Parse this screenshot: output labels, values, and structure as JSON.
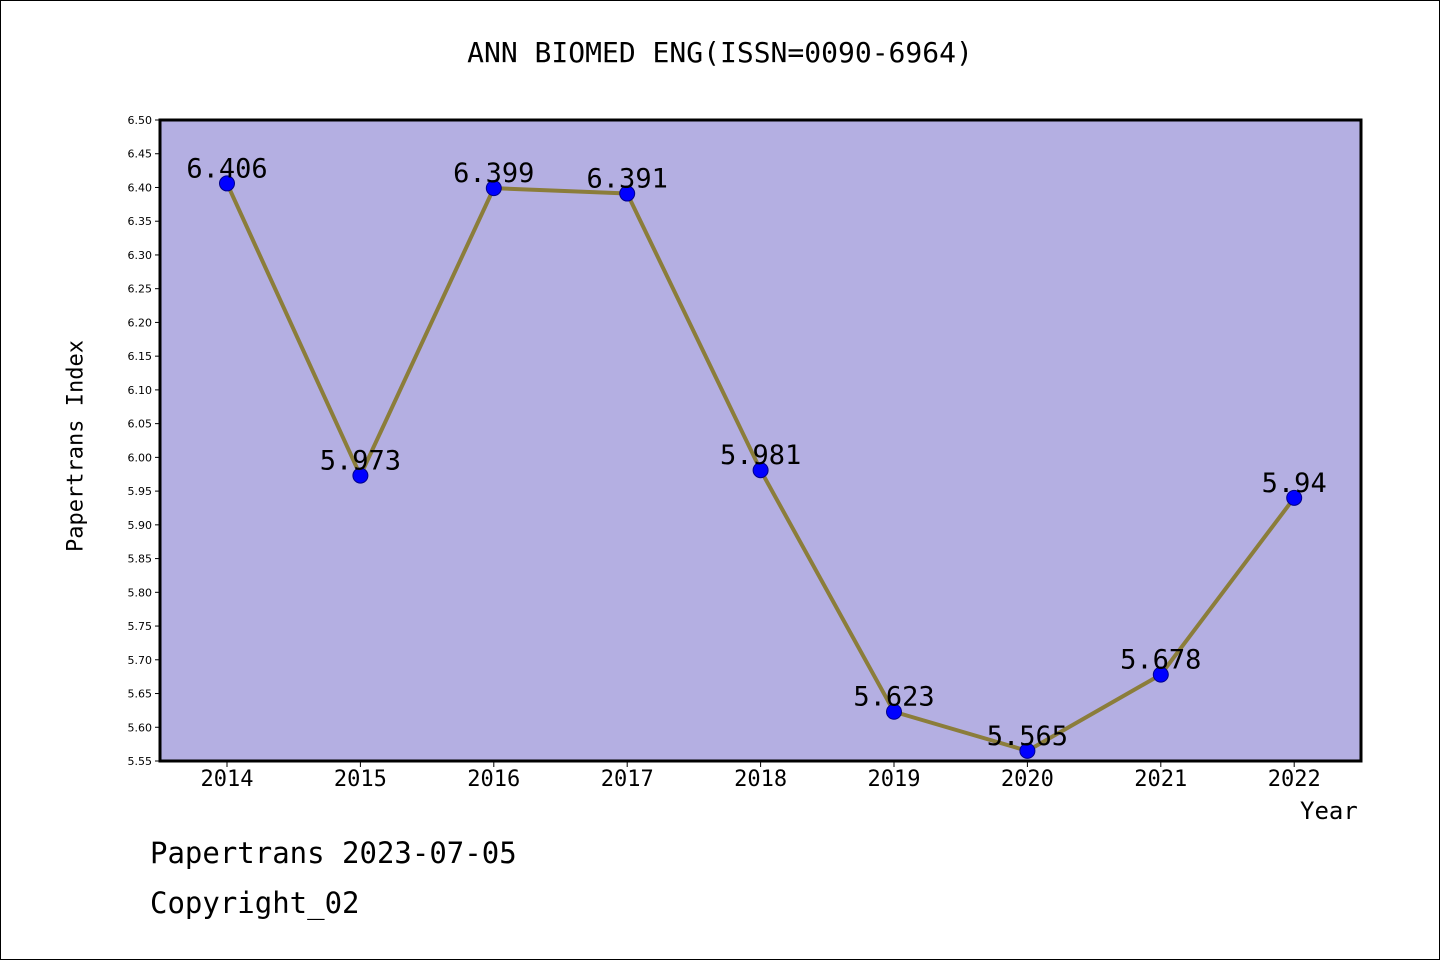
{
  "chart_data": {
    "type": "line",
    "title": "ANN BIOMED ENG(ISSN=0090-6964)",
    "xlabel": "Year",
    "ylabel": "Papertrans Index",
    "categories": [
      "2014",
      "2015",
      "2016",
      "2017",
      "2018",
      "2019",
      "2020",
      "2021",
      "2022"
    ],
    "values": [
      6.406,
      5.973,
      6.399,
      6.391,
      5.981,
      5.623,
      5.565,
      5.678,
      5.94
    ],
    "data_labels": [
      "6.406",
      "5.973",
      "6.399",
      "6.391",
      "5.981",
      "5.623",
      "5.565",
      "5.678",
      "5.94"
    ],
    "ylim": [
      5.55,
      6.5
    ],
    "y_ticks": [
      "5.55",
      "5.60",
      "5.65",
      "5.70",
      "5.75",
      "5.80",
      "5.85",
      "5.90",
      "5.95",
      "6.00",
      "6.05",
      "6.10",
      "6.15",
      "6.20",
      "6.25",
      "6.30",
      "6.35",
      "6.40",
      "6.45",
      "6.50"
    ],
    "grid": false,
    "legend": "none",
    "colors": {
      "plot_bg": "#b4afe2",
      "line": "#8b7d3a",
      "marker": "#0000ff",
      "marker_edge": "#00008b"
    }
  },
  "footer": {
    "date_line": "Papertrans 2023-07-05",
    "copyright": "Copyright_02"
  }
}
